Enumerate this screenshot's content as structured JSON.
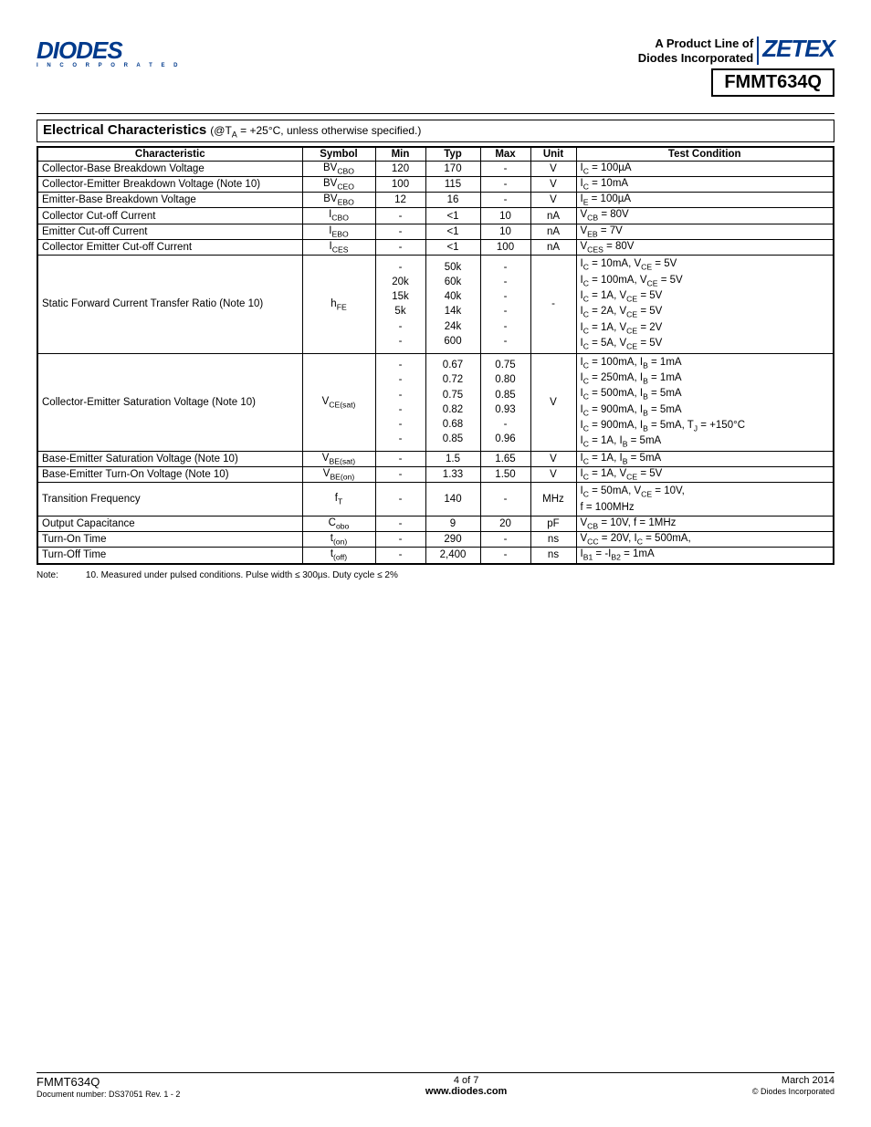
{
  "header": {
    "logo_text": "DIODES",
    "logo_sub": "I N C O R P O R A T E D",
    "product_line_1": "A Product Line of",
    "product_line_2": "Diodes Incorporated",
    "zetex": "ZETEX",
    "part_number": "FMMT634Q"
  },
  "section": {
    "title": "Electrical Characteristics",
    "cond": "(@T",
    "cond_sub": "A",
    "cond_rest": " = +25°C, unless otherwise specified.)"
  },
  "table": {
    "headers": [
      "Characteristic",
      "Symbol",
      "Min",
      "Typ",
      "Max",
      "Unit",
      "Test Condition"
    ],
    "col_widths": [
      "290px",
      "80px",
      "55px",
      "60px",
      "55px",
      "50px",
      ""
    ],
    "rows": [
      {
        "char": "Collector-Base Breakdown Voltage",
        "sym": "BV",
        "sub": "CBO",
        "min": "120",
        "typ": "170",
        "max": "-",
        "unit": "V",
        "cond": "I<sub>C</sub> = 100µA"
      },
      {
        "char": "Collector-Emitter Breakdown Voltage (Note 10)",
        "sym": "BV",
        "sub": "CEO",
        "min": "100",
        "typ": "115",
        "max": "-",
        "unit": "V",
        "cond": "I<sub>C</sub> = 10mA"
      },
      {
        "char": "Emitter-Base Breakdown Voltage",
        "sym": "BV",
        "sub": "EBO",
        "min": "12",
        "typ": "16",
        "max": "-",
        "unit": "V",
        "cond": "I<sub>E</sub> = 100µA"
      },
      {
        "char": "Collector Cut-off Current",
        "sym": "I",
        "sub": "CBO",
        "min": "-",
        "typ": "<1",
        "max": "10",
        "unit": "nA",
        "cond": "V<sub>CB</sub> = 80V"
      },
      {
        "char": "Emitter Cut-off Current",
        "sym": "I",
        "sub": "EBO",
        "min": "-",
        "typ": "<1",
        "max": "10",
        "unit": "nA",
        "cond": "V<sub>EB</sub> = 7V"
      },
      {
        "char": "Collector Emitter Cut-off Current",
        "sym": "I",
        "sub": "CES",
        "min": "-",
        "typ": "<1",
        "max": "100",
        "unit": "nA",
        "cond": "V<sub>CES</sub> = 80V"
      },
      {
        "char": "Static Forward Current Transfer Ratio (Note 10)",
        "sym": "h",
        "sub": "FE",
        "min": "-<br>20k<br>15k<br>5k<br>-<br>-",
        "typ": "50k<br>60k<br>40k<br>14k<br>24k<br>600",
        "max": "-<br>-<br>-<br>-<br>-<br>-",
        "unit": "-",
        "cond": "I<sub>C</sub> = 10mA, V<sub>CE</sub> = 5V<br>I<sub>C</sub> = 100mA, V<sub>CE</sub> = 5V<br>I<sub>C</sub> = 1A, V<sub>CE</sub> = 5V<br>I<sub>C</sub> = 2A, V<sub>CE</sub> = 5V<br>I<sub>C</sub> = 1A, V<sub>CE</sub> = 2V<br>I<sub>C</sub> = 5A, V<sub>CE</sub> = 5V",
        "multi": true
      },
      {
        "char": "Collector-Emitter Saturation Voltage (Note 10)",
        "sym": "V",
        "sub": "CE(sat)",
        "min": "-<br>-<br>-<br>-<br>-<br>-",
        "typ": "0.67<br>0.72<br>0.75<br>0.82<br>0.68<br>0.85",
        "max": "0.75<br>0.80<br>0.85<br>0.93<br>-<br>0.96",
        "unit": "V",
        "cond": "I<sub>C</sub> = 100mA, I<sub>B</sub> = 1mA<br>I<sub>C</sub> = 250mA, I<sub>B</sub> = 1mA<br>I<sub>C</sub> = 500mA, I<sub>B</sub> = 5mA<br>I<sub>C</sub> = 900mA, I<sub>B</sub> = 5mA<br>I<sub>C</sub> = 900mA, I<sub>B</sub> = 5mA, T<sub>J</sub> = +150°C<br>I<sub>C</sub> = 1A, I<sub>B</sub> = 5mA",
        "multi": true
      },
      {
        "char": "Base-Emitter Saturation Voltage (Note 10)",
        "sym": "V",
        "sub": "BE(sat)",
        "min": "-",
        "typ": "1.5",
        "max": "1.65",
        "unit": "V",
        "cond": "I<sub>C</sub> = 1A, I<sub>B</sub> = 5mA"
      },
      {
        "char": "Base-Emitter Turn-On Voltage (Note 10)",
        "sym": "V",
        "sub": "BE(on)",
        "min": "-",
        "typ": "1.33",
        "max": "1.50",
        "unit": "V",
        "cond": "I<sub>C</sub> = 1A, V<sub>CE</sub> = 5V"
      },
      {
        "char": "Transition Frequency",
        "sym": "f",
        "sub": "T",
        "min": "-",
        "typ": "140",
        "max": "-",
        "unit": "MHz",
        "cond": "I<sub>C</sub> = 50mA, V<sub>CE</sub> = 10V,<br>f = 100MHz",
        "multi": true
      },
      {
        "char": "Output Capacitance",
        "sym": "C",
        "sub": "obo",
        "min": "-",
        "typ": "9",
        "max": "20",
        "unit": "pF",
        "cond": "V<sub>CB</sub> = 10V, f = 1MHz"
      },
      {
        "char": "Turn-On Time",
        "sym": "t",
        "sub": "(on)",
        "min": "-",
        "typ": "290",
        "max": "-",
        "unit": "ns",
        "cond": "V<sub>CC</sub> = 20V, I<sub>C</sub> = 500mA,"
      },
      {
        "char": "Turn-Off Time",
        "sym": "t",
        "sub": "(off)",
        "min": "-",
        "typ": "2,400",
        "max": "-",
        "unit": "ns",
        "cond": "I<sub>B1</sub> = -I<sub>B2</sub> = 1mA"
      }
    ]
  },
  "note": {
    "label": "Note:",
    "num": "10.",
    "text": "Measured under pulsed conditions. Pulse width ≤ 300µs. Duty cycle ≤ 2%"
  },
  "footer": {
    "left_top": "FMMT634Q",
    "left_bottom": "Document number: DS37051 Rev. 1 - 2",
    "mid_top": "4 of 7",
    "mid_bottom": "www.diodes.com",
    "right_top": "March 2014",
    "right_bottom": "© Diodes Incorporated"
  }
}
